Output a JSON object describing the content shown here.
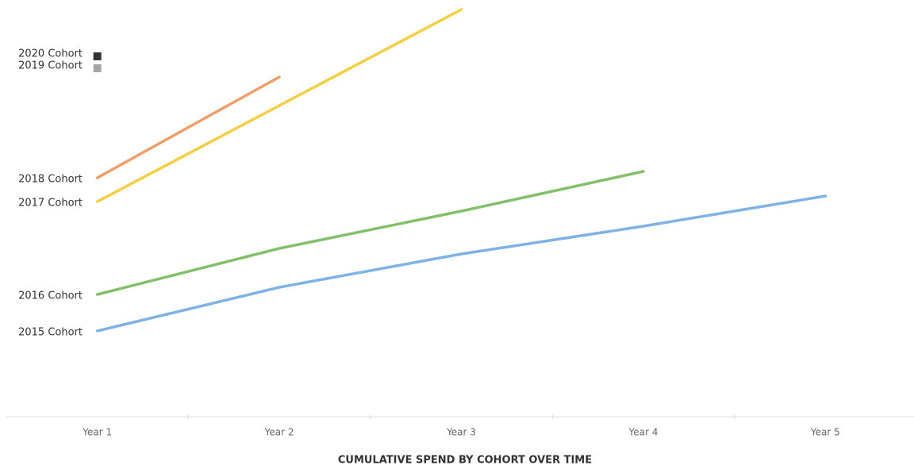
{
  "chart_data": {
    "type": "line",
    "title": "CUMULATIVE SPEND BY COHORT OVER TIME",
    "categories": [
      "Year 1",
      "Year 2",
      "Year 3",
      "Year 4",
      "Year 5"
    ],
    "ylim": [
      0,
      105
    ],
    "series": [
      {
        "name": "2015 Cohort",
        "color": "#7fb2e5",
        "values": [
          21.6,
          32.6,
          41,
          48,
          55.6
        ]
      },
      {
        "name": "2016 Cohort",
        "color": "#82c06a",
        "values": [
          30.8,
          42.4,
          51.8,
          61.8,
          null
        ]
      },
      {
        "name": "2017 Cohort",
        "color": "#f5cf45",
        "values": [
          54.2,
          78.4,
          102.6,
          null,
          null
        ]
      },
      {
        "name": "2018 Cohort",
        "color": "#eea06a",
        "values": [
          60.2,
          85.6,
          null,
          null,
          null
        ]
      },
      {
        "name": "2019 Cohort",
        "color": "#a6a6a6",
        "values": [
          87.8,
          null,
          null,
          null,
          null
        ]
      },
      {
        "name": "2020 Cohort",
        "color": "#333333",
        "values": [
          90.8,
          null,
          null,
          null,
          null
        ]
      }
    ]
  }
}
